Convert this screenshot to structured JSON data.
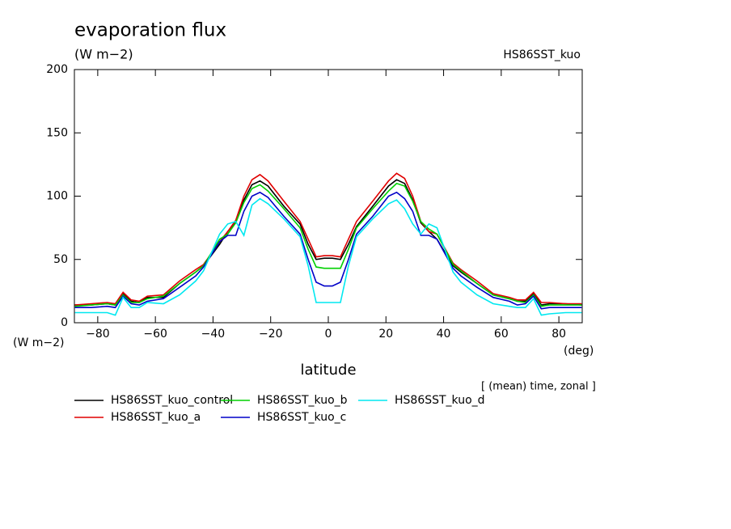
{
  "chart_data": {
    "type": "line",
    "title": "evaporation flux",
    "subtitle": "(W m−2)",
    "annotation": "HS86SST_kuo",
    "ylabel": "(W m−2)",
    "xunit": "(deg)",
    "xlabel": "latitude",
    "note": "[ (mean) time, zonal ]",
    "x": [
      -87.9,
      -82.3,
      -76.7,
      -73.9,
      -71.2,
      -68.4,
      -65.6,
      -62.8,
      -57.2,
      -51.6,
      -46,
      -43.3,
      -37.7,
      -34.9,
      -32.1,
      -29.3,
      -26.5,
      -23.7,
      -20.9,
      -15.4,
      -9.8,
      -7,
      -4.2,
      -1.4,
      1.4,
      4.2,
      7,
      9.8,
      15.4,
      20.9,
      23.7,
      26.5,
      29.3,
      32.1,
      34.9,
      37.7,
      43.3,
      46,
      51.6,
      57.2,
      62.8,
      65.6,
      68.4,
      71.2,
      73.9,
      76.7,
      82.3,
      87.9
    ],
    "xlim": [
      -88.1,
      88.1
    ],
    "xticks": [
      {
        "value": -80,
        "label": "−80"
      },
      {
        "value": -60,
        "label": "−60"
      },
      {
        "value": -40,
        "label": "−40"
      },
      {
        "value": -20,
        "label": "−20"
      },
      0,
      20,
      40,
      60,
      80
    ],
    "ylim": [
      0,
      200
    ],
    "yticks": [
      0,
      50,
      100,
      150,
      200
    ],
    "series": [
      {
        "name": "HS86SST_kuo_control",
        "color": "#000000",
        "values": [
          14,
          14,
          15,
          14,
          23,
          17,
          16,
          20,
          20,
          31,
          40,
          45,
          62,
          72,
          80,
          97,
          109,
          112,
          108,
          92,
          78,
          62,
          50,
          51,
          51,
          50,
          62,
          76,
          92,
          108,
          113,
          110,
          97,
          79,
          72,
          66,
          45,
          40,
          31,
          22,
          19,
          17,
          17,
          23,
          14,
          15,
          15,
          14
        ]
      },
      {
        "name": "HS86SST_kuo_a",
        "color": "#e00000",
        "values": [
          14,
          15,
          16,
          15,
          24,
          18,
          17,
          21,
          22,
          33,
          42,
          46,
          64,
          72,
          81,
          100,
          113,
          117,
          112,
          96,
          80,
          66,
          52,
          53,
          53,
          52,
          66,
          80,
          96,
          112,
          118,
          114,
          100,
          80,
          72,
          70,
          47,
          42,
          33,
          23,
          20,
          18,
          18,
          24,
          16,
          16,
          15,
          15
        ]
      },
      {
        "name": "HS86SST_kuo_b",
        "color": "#00d000",
        "values": [
          13,
          14,
          15,
          14,
          22,
          16,
          16,
          19,
          21,
          31,
          40,
          45,
          66,
          70,
          79,
          95,
          106,
          109,
          104,
          90,
          75,
          58,
          44,
          43,
          43,
          43,
          58,
          75,
          90,
          104,
          110,
          108,
          96,
          80,
          74,
          70,
          46,
          41,
          31,
          22,
          19,
          17,
          16,
          22,
          13,
          14,
          14,
          14
        ]
      },
      {
        "name": "HS86SST_kuo_c",
        "color": "#0000c8",
        "values": [
          12,
          12,
          13,
          12,
          21,
          15,
          14,
          17,
          19,
          28,
          37,
          44,
          64,
          69,
          69,
          88,
          100,
          103,
          99,
          84,
          70,
          50,
          32,
          29,
          29,
          32,
          50,
          70,
          84,
          100,
          103,
          98,
          88,
          69,
          69,
          66,
          43,
          37,
          28,
          20,
          17,
          14,
          15,
          21,
          11,
          12,
          12,
          12
        ]
      },
      {
        "name": "HS86SST_kuo_d",
        "color": "#00e8f0",
        "values": [
          8,
          8,
          8,
          6,
          20,
          12,
          12,
          16,
          15,
          22,
          33,
          41,
          70,
          78,
          80,
          69,
          93,
          98,
          94,
          82,
          68,
          45,
          16,
          16,
          16,
          16,
          45,
          68,
          82,
          94,
          97,
          90,
          78,
          70,
          78,
          75,
          40,
          32,
          22,
          15,
          13,
          12,
          12,
          19,
          6,
          7,
          8,
          8
        ]
      }
    ]
  }
}
